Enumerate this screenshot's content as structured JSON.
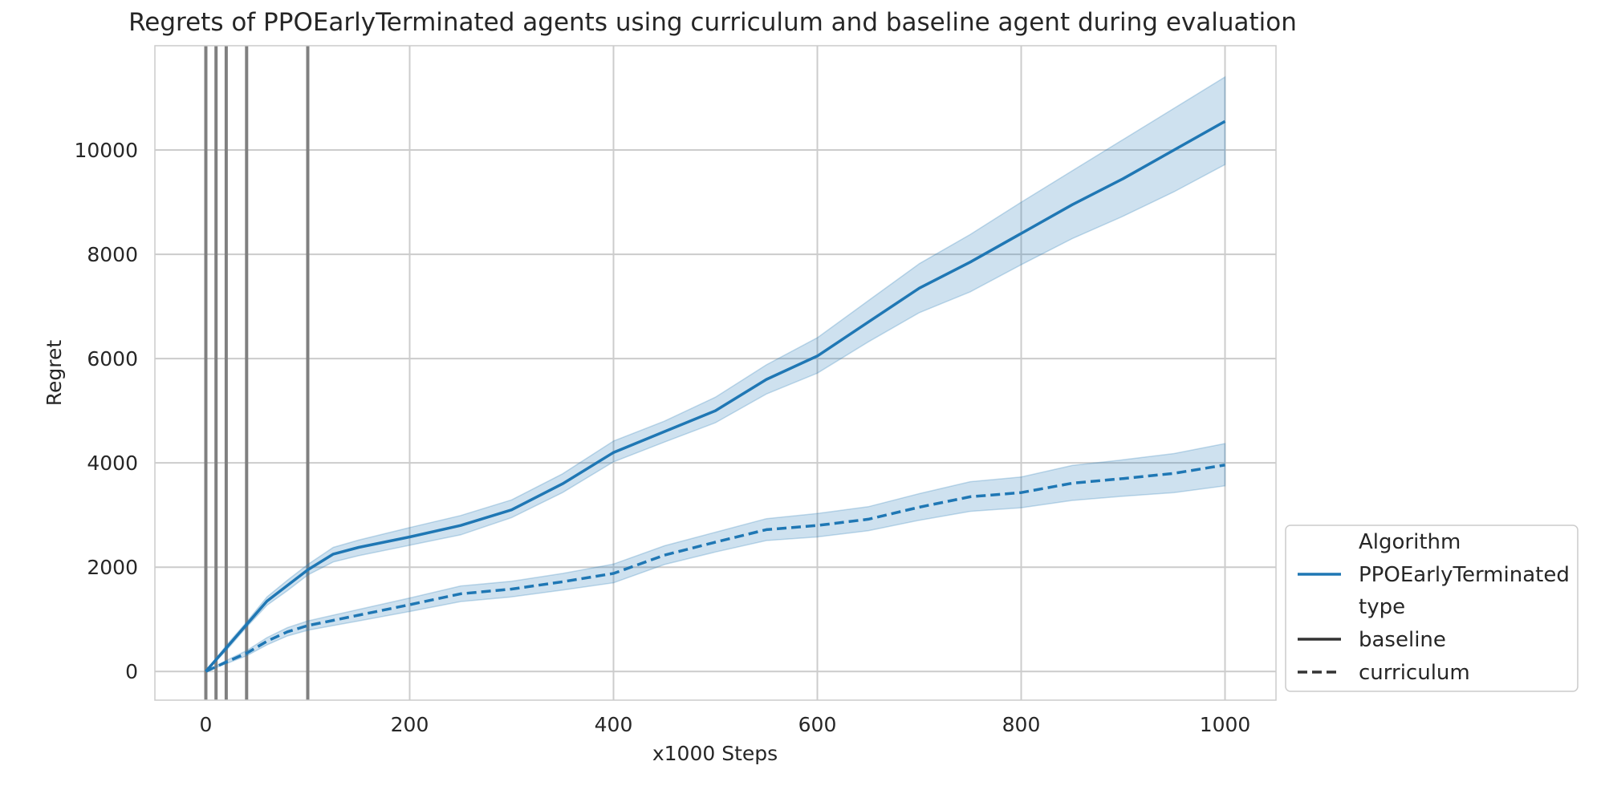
{
  "chart_data": {
    "type": "line",
    "title": "Regrets of PPOEarlyTerminated agents using curriculum and baseline agent during evaluation",
    "xlabel": "x1000 Steps",
    "ylabel": "Regret",
    "xlim": [
      -50,
      1050
    ],
    "ylim": [
      -550,
      12000
    ],
    "x_ticks": [
      "0",
      "200",
      "400",
      "600",
      "800",
      "1000"
    ],
    "y_ticks": [
      "0",
      "2000",
      "4000",
      "6000",
      "8000",
      "10000"
    ],
    "x_tick_values": [
      0,
      200,
      400,
      600,
      800,
      1000
    ],
    "y_tick_values": [
      0,
      2000,
      4000,
      6000,
      8000,
      10000
    ],
    "grid": true,
    "vertical_markers": [
      0,
      10,
      20,
      40,
      100
    ],
    "legend": {
      "placement": "outside-lower-right",
      "algorithm_title": "Algorithm",
      "algorithm_entry": "PPOEarlyTerminated",
      "type_title": "type",
      "type_entries": [
        "baseline",
        "curriculum"
      ]
    },
    "colors": {
      "series": "#1f77b4",
      "band": "#1f77b4",
      "marker": "#808080",
      "grid": "#cccccc"
    },
    "series": [
      {
        "name": "baseline",
        "style": "solid",
        "x": [
          0,
          20,
          40,
          60,
          80,
          100,
          125,
          150,
          200,
          250,
          300,
          350,
          400,
          450,
          500,
          550,
          600,
          650,
          700,
          750,
          800,
          850,
          900,
          950,
          1000
        ],
        "y": [
          0,
          450,
          900,
          1350,
          1650,
          1950,
          2250,
          2380,
          2580,
          2800,
          3100,
          3600,
          4200,
          4600,
          5000,
          5600,
          6050,
          6700,
          7350,
          7850,
          8400,
          8950,
          9450,
          10000,
          10550
        ],
        "lower": [
          0,
          400,
          850,
          1270,
          1550,
          1850,
          2100,
          2220,
          2420,
          2620,
          2950,
          3430,
          4020,
          4400,
          4770,
          5320,
          5720,
          6320,
          6880,
          7280,
          7800,
          8300,
          8730,
          9200,
          9720
        ],
        "upper": [
          0,
          500,
          950,
          1430,
          1750,
          2050,
          2380,
          2520,
          2760,
          2990,
          3290,
          3790,
          4420,
          4800,
          5260,
          5880,
          6400,
          7110,
          7820,
          8380,
          9000,
          9600,
          10200,
          10800,
          11400
        ]
      },
      {
        "name": "curriculum",
        "style": "dashed",
        "x": [
          0,
          20,
          40,
          60,
          80,
          100,
          125,
          150,
          200,
          250,
          300,
          350,
          400,
          450,
          500,
          550,
          600,
          650,
          700,
          750,
          800,
          850,
          900,
          950,
          1000
        ],
        "y": [
          0,
          180,
          350,
          580,
          760,
          880,
          980,
          1080,
          1280,
          1490,
          1580,
          1720,
          1880,
          2230,
          2480,
          2720,
          2800,
          2920,
          3150,
          3350,
          3430,
          3610,
          3700,
          3800,
          3960
        ],
        "lower": [
          0,
          150,
          300,
          510,
          680,
          790,
          880,
          970,
          1150,
          1340,
          1430,
          1560,
          1700,
          2050,
          2290,
          2510,
          2580,
          2700,
          2900,
          3070,
          3140,
          3280,
          3360,
          3430,
          3560
        ],
        "upper": [
          0,
          210,
          400,
          650,
          840,
          970,
          1080,
          1190,
          1410,
          1640,
          1730,
          1880,
          2060,
          2410,
          2670,
          2930,
          3030,
          3160,
          3410,
          3640,
          3730,
          3950,
          4060,
          4180,
          4370
        ]
      }
    ]
  }
}
